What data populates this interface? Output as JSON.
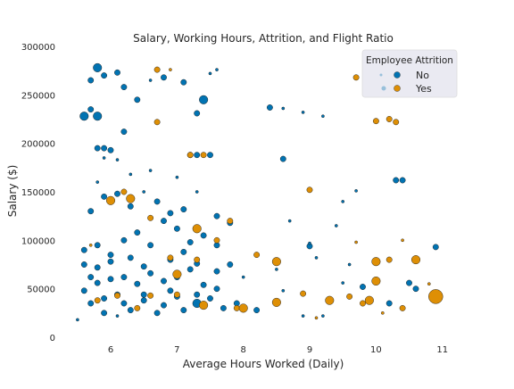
{
  "chart_data": {
    "type": "scatter",
    "title": "Salary, Working Hours, Attrition, and Flight Ratio",
    "xlabel": "Average Hours Worked (Daily)",
    "ylabel": "Salary ($)",
    "xlim": [
      5.3,
      11.3
    ],
    "ylim": [
      0,
      300000
    ],
    "xticks": [
      6,
      7,
      8,
      9,
      10,
      11
    ],
    "yticks": [
      0,
      50000,
      100000,
      150000,
      200000,
      250000,
      300000
    ],
    "grid": false,
    "legend": {
      "title": "Employee Attrition",
      "placement": "top-right",
      "entries": [
        {
          "label": "No",
          "color": "#0173b2"
        },
        {
          "label": "Yes",
          "color": "#de8f05"
        }
      ]
    },
    "size_note": "marker size encodes flight ratio",
    "series": [
      {
        "name": "No",
        "color": "#0173b2",
        "points": [
          [
            5.8,
            278000,
            3
          ],
          [
            5.9,
            270000,
            2
          ],
          [
            5.7,
            265000,
            2
          ],
          [
            5.6,
            228000,
            3
          ],
          [
            5.8,
            228000,
            3
          ],
          [
            5.7,
            235000,
            2
          ],
          [
            5.8,
            195000,
            2
          ],
          [
            5.9,
            195000,
            2
          ],
          [
            6.2,
            212000,
            2
          ],
          [
            6.4,
            245000,
            2
          ],
          [
            6.2,
            258000,
            2
          ],
          [
            6.1,
            273000,
            2
          ],
          [
            6.6,
            265000,
            1
          ],
          [
            6.8,
            268000,
            2
          ],
          [
            7.1,
            263000,
            2
          ],
          [
            7.4,
            245000,
            3
          ],
          [
            7.5,
            272000,
            1
          ],
          [
            7.6,
            276000,
            1
          ],
          [
            7.3,
            231000,
            2
          ],
          [
            7.2,
            188000,
            2
          ],
          [
            7.3,
            188000,
            2
          ],
          [
            7.5,
            188000,
            2
          ],
          [
            6.0,
            193000,
            2
          ],
          [
            6.1,
            183000,
            1
          ],
          [
            5.9,
            185000,
            1
          ],
          [
            8.4,
            237000,
            2
          ],
          [
            8.6,
            184000,
            2
          ],
          [
            8.6,
            236000,
            1
          ],
          [
            8.9,
            232000,
            1
          ],
          [
            9.2,
            228000,
            1
          ],
          [
            10.3,
            162000,
            2
          ],
          [
            10.4,
            162000,
            2
          ],
          [
            10.9,
            93000,
            2
          ],
          [
            9.0,
            94000,
            2
          ],
          [
            9.1,
            82000,
            1
          ],
          [
            10.5,
            56000,
            2
          ],
          [
            10.6,
            50000,
            2
          ],
          [
            10.2,
            35000,
            2
          ],
          [
            9.6,
            75000,
            1
          ],
          [
            9.8,
            52000,
            2
          ],
          [
            9.5,
            56000,
            1
          ],
          [
            9.2,
            22000,
            1
          ],
          [
            8.9,
            22000,
            1
          ],
          [
            8.6,
            48000,
            1
          ],
          [
            8.5,
            70000,
            1
          ],
          [
            8.7,
            120000,
            1
          ],
          [
            9.0,
            97000,
            1
          ],
          [
            9.4,
            115000,
            1
          ],
          [
            9.5,
            140000,
            1
          ],
          [
            9.7,
            151000,
            1
          ],
          [
            8.2,
            28000,
            2
          ],
          [
            7.9,
            35000,
            2
          ],
          [
            7.6,
            50000,
            2
          ],
          [
            7.3,
            35000,
            3
          ],
          [
            7.0,
            42000,
            2
          ],
          [
            6.8,
            33000,
            2
          ],
          [
            6.5,
            44000,
            2
          ],
          [
            6.2,
            35000,
            2
          ],
          [
            5.9,
            40000,
            2
          ],
          [
            5.7,
            35000,
            2
          ],
          [
            5.5,
            18000,
            1
          ],
          [
            5.6,
            48000,
            2
          ],
          [
            5.8,
            56000,
            2
          ],
          [
            6.0,
            60000,
            2
          ],
          [
            6.2,
            62000,
            2
          ],
          [
            6.4,
            55000,
            2
          ],
          [
            6.6,
            66000,
            2
          ],
          [
            6.8,
            58000,
            2
          ],
          [
            7.0,
            62000,
            2
          ],
          [
            7.2,
            70000,
            2
          ],
          [
            7.4,
            54000,
            2
          ],
          [
            7.6,
            68000,
            2
          ],
          [
            7.8,
            75000,
            2
          ],
          [
            8.0,
            62000,
            1
          ],
          [
            5.6,
            90000,
            2
          ],
          [
            5.8,
            95000,
            2
          ],
          [
            6.0,
            85000,
            2
          ],
          [
            6.2,
            100000,
            2
          ],
          [
            6.4,
            108000,
            2
          ],
          [
            6.6,
            95000,
            2
          ],
          [
            6.8,
            120000,
            2
          ],
          [
            7.0,
            112000,
            2
          ],
          [
            7.2,
            98000,
            2
          ],
          [
            7.4,
            105000,
            2
          ],
          [
            7.6,
            95000,
            2
          ],
          [
            7.8,
            118000,
            2
          ],
          [
            5.7,
            130000,
            2
          ],
          [
            5.9,
            145000,
            2
          ],
          [
            6.1,
            148000,
            2
          ],
          [
            6.3,
            135000,
            2
          ],
          [
            6.5,
            150000,
            1
          ],
          [
            6.7,
            140000,
            2
          ],
          [
            6.9,
            128000,
            2
          ],
          [
            7.1,
            132000,
            2
          ],
          [
            7.3,
            150000,
            1
          ],
          [
            7.6,
            125000,
            2
          ],
          [
            5.6,
            75000,
            2
          ],
          [
            5.8,
            72000,
            2
          ],
          [
            6.0,
            78000,
            2
          ],
          [
            6.3,
            82000,
            2
          ],
          [
            6.5,
            73000,
            2
          ],
          [
            6.9,
            80000,
            2
          ],
          [
            7.1,
            88000,
            2
          ],
          [
            7.3,
            76000,
            2
          ],
          [
            5.9,
            25000,
            2
          ],
          [
            6.3,
            28000,
            2
          ],
          [
            6.7,
            25000,
            2
          ],
          [
            7.1,
            28000,
            2
          ],
          [
            7.7,
            30000,
            2
          ],
          [
            6.1,
            22000,
            1
          ],
          [
            5.7,
            62000,
            2
          ],
          [
            6.1,
            44000,
            2
          ],
          [
            6.5,
            38000,
            2
          ],
          [
            6.9,
            48000,
            2
          ],
          [
            7.3,
            44000,
            2
          ],
          [
            7.5,
            40000,
            2
          ],
          [
            6.6,
            172000,
            1
          ],
          [
            7.0,
            165000,
            1
          ],
          [
            6.3,
            168000,
            1
          ],
          [
            5.8,
            160000,
            1
          ]
        ]
      },
      {
        "name": "Yes",
        "color": "#de8f05",
        "points": [
          [
            10.9,
            42000,
            4
          ],
          [
            10.6,
            80000,
            3
          ],
          [
            10.0,
            78000,
            3
          ],
          [
            9.9,
            38000,
            3
          ],
          [
            10.0,
            58000,
            3
          ],
          [
            9.3,
            38000,
            3
          ],
          [
            8.5,
            78000,
            3
          ],
          [
            8.5,
            36000,
            3
          ],
          [
            8.9,
            45000,
            2
          ],
          [
            9.0,
            152000,
            2
          ],
          [
            9.7,
            268000,
            2
          ],
          [
            10.0,
            223000,
            2
          ],
          [
            10.2,
            225000,
            2
          ],
          [
            10.3,
            222000,
            2
          ],
          [
            6.7,
            222000,
            2
          ],
          [
            6.7,
            276000,
            2
          ],
          [
            6.3,
            143000,
            3
          ],
          [
            6.0,
            141000,
            3
          ],
          [
            6.2,
            150000,
            2
          ],
          [
            7.8,
            120000,
            2
          ],
          [
            7.3,
            112000,
            3
          ],
          [
            7.3,
            80000,
            2
          ],
          [
            7.0,
            65000,
            3
          ],
          [
            7.9,
            30000,
            2
          ],
          [
            8.0,
            30000,
            3
          ],
          [
            7.4,
            33000,
            3
          ],
          [
            7.0,
            44000,
            2
          ],
          [
            6.6,
            43000,
            2
          ],
          [
            6.1,
            43000,
            2
          ],
          [
            5.8,
            38000,
            2
          ],
          [
            6.4,
            30000,
            2
          ],
          [
            6.9,
            82000,
            2
          ],
          [
            6.6,
            123000,
            2
          ],
          [
            7.2,
            188000,
            2
          ],
          [
            7.4,
            188000,
            2
          ],
          [
            6.9,
            276000,
            1
          ],
          [
            5.7,
            95000,
            1
          ],
          [
            9.8,
            35000,
            2
          ],
          [
            10.4,
            30000,
            2
          ],
          [
            10.8,
            55000,
            1
          ],
          [
            9.6,
            42000,
            2
          ],
          [
            10.2,
            80000,
            2
          ],
          [
            9.1,
            20000,
            1
          ],
          [
            8.2,
            85000,
            2
          ],
          [
            7.6,
            100000,
            2
          ],
          [
            10.4,
            100000,
            1
          ],
          [
            9.7,
            98000,
            1
          ],
          [
            10.1,
            25000,
            1
          ]
        ]
      }
    ]
  }
}
